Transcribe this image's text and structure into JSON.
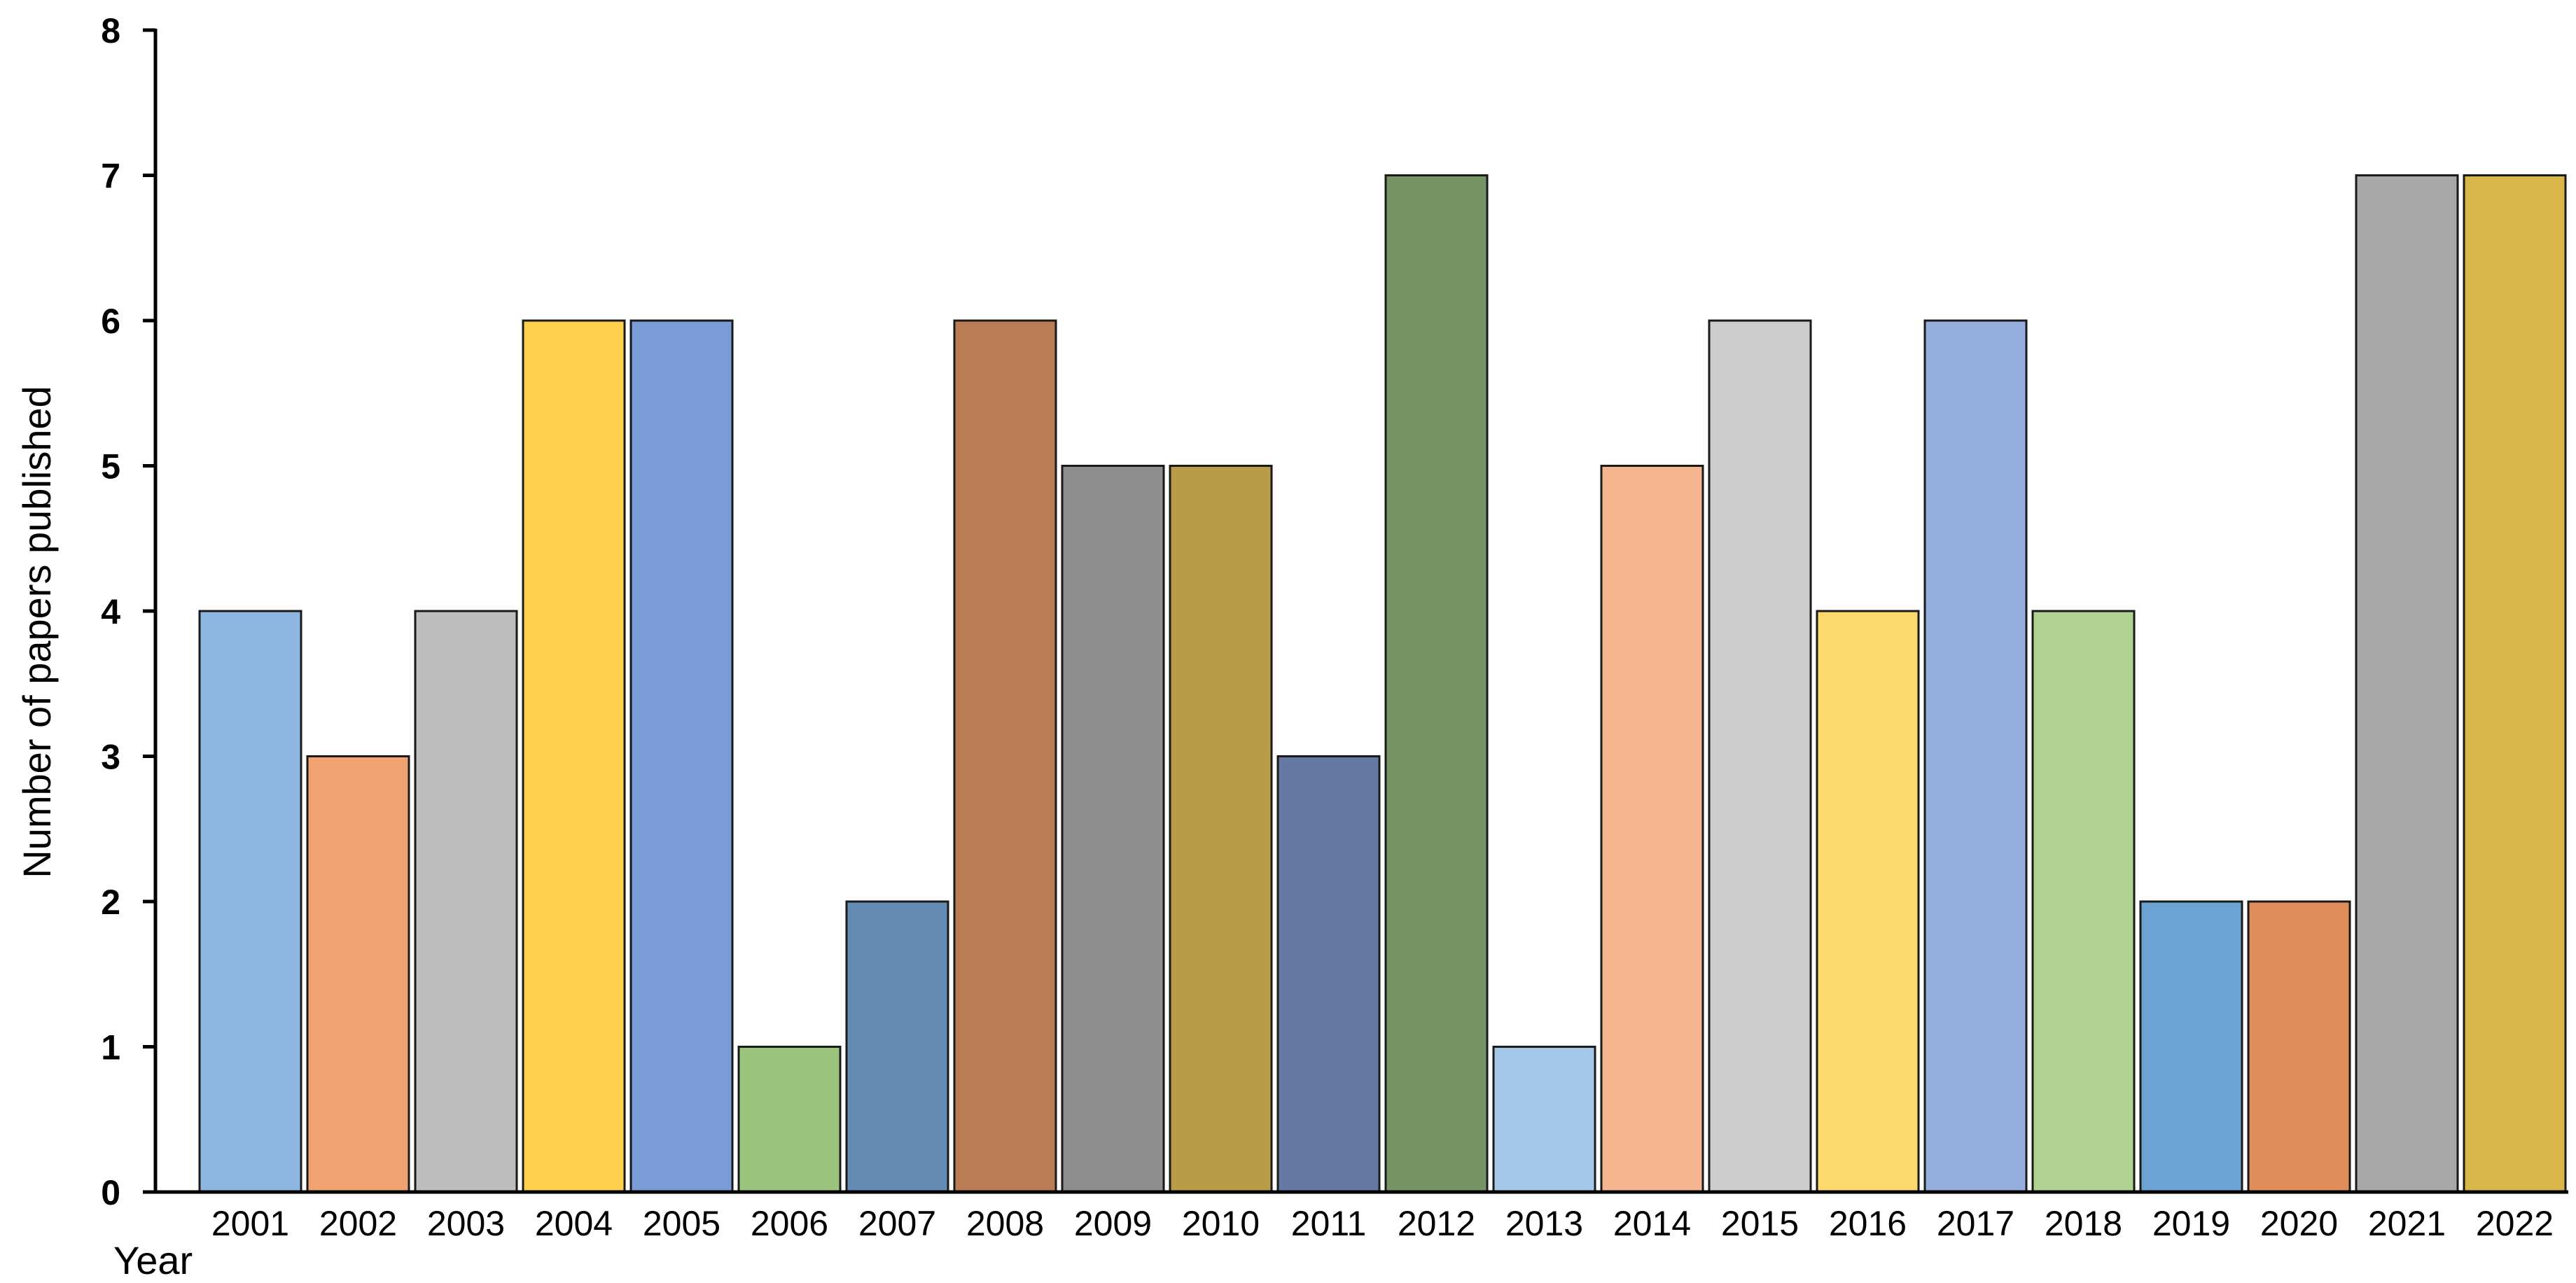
{
  "chart_data": {
    "type": "bar",
    "title": "",
    "xlabel": "Year",
    "ylabel": "Number of papers published",
    "ylim": [
      0,
      8
    ],
    "yticks": [
      0,
      1,
      2,
      3,
      4,
      5,
      6,
      7,
      8
    ],
    "grid": false,
    "legend": "none",
    "categories": [
      "2001",
      "2002",
      "2003",
      "2004",
      "2005",
      "2006",
      "2007",
      "2008",
      "2009",
      "2010",
      "2011",
      "2012",
      "2013",
      "2014",
      "2015",
      "2016",
      "2017",
      "2018",
      "2019",
      "2020",
      "2021",
      "2022"
    ],
    "values": [
      4,
      3,
      4,
      6,
      6,
      1,
      2,
      6,
      5,
      5,
      3,
      7,
      1,
      5,
      6,
      4,
      6,
      4,
      2,
      2,
      7,
      7
    ],
    "colors": [
      "#8db7e2",
      "#f0a370",
      "#bebebe",
      "#fdd14d",
      "#7a9bd5",
      "#9bc57c",
      "#648bb4",
      "#b87d55",
      "#8e8e8e",
      "#b89c4a",
      "#6679a3",
      "#779466",
      "#a5c8ea",
      "#f5b58f",
      "#cdcdcd",
      "#fdd86d",
      "#95aedd",
      "#b0d393",
      "#6da2d5",
      "#df8d5a",
      "#a8a8a8",
      "#d9b649"
    ]
  }
}
